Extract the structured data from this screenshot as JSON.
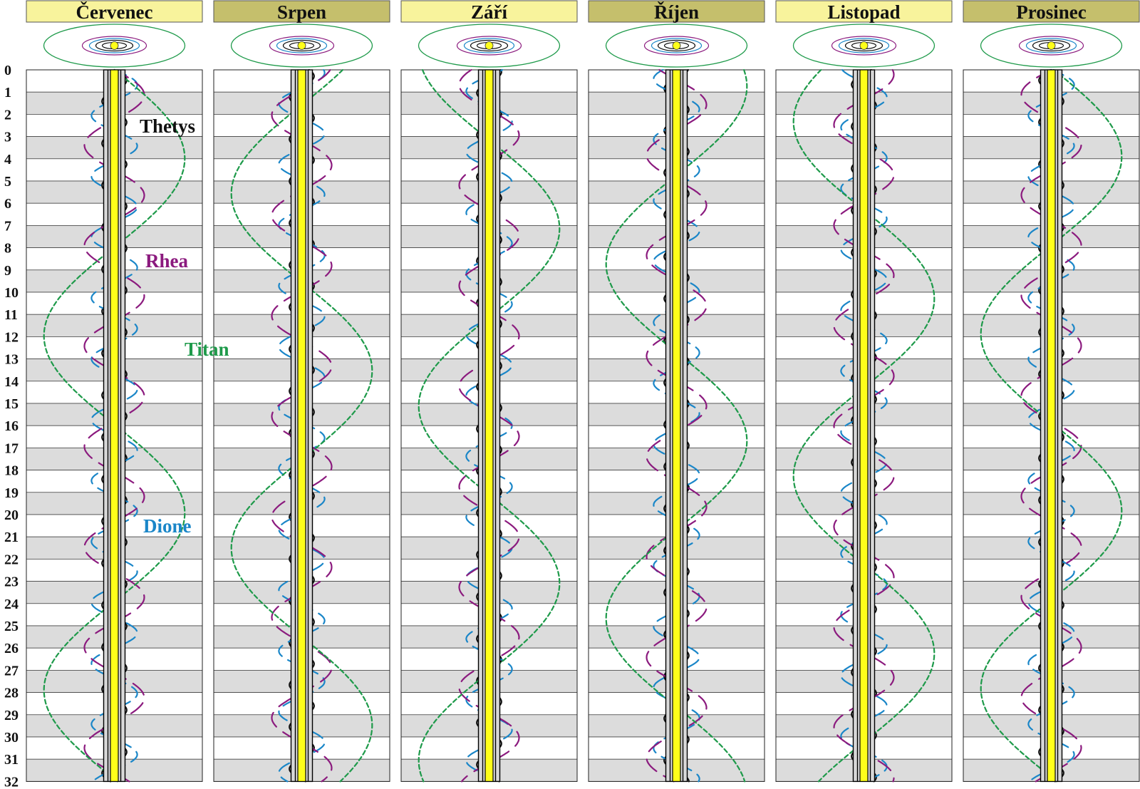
{
  "months": [
    {
      "name": "Červenec",
      "tint": "#f8f39c",
      "phase": 0.0
    },
    {
      "name": "Srpen",
      "tint": "#c5bf6c",
      "phase": 0.9
    },
    {
      "name": "Září",
      "tint": "#f8f39c",
      "phase": 1.8
    },
    {
      "name": "Říjen",
      "tint": "#c5bf6c",
      "phase": 2.7
    },
    {
      "name": "Listopad",
      "tint": "#f8f39c",
      "phase": 3.6
    },
    {
      "name": "Prosinec",
      "tint": "#c5bf6c",
      "phase": 4.5
    }
  ],
  "day_labels": [
    "0",
    "1",
    "2",
    "3",
    "4",
    "5",
    "6",
    "7",
    "8",
    "9",
    "10",
    "11",
    "12",
    "13",
    "14",
    "15",
    "16",
    "17",
    "18",
    "19",
    "20",
    "21",
    "22",
    "23",
    "24",
    "25",
    "26",
    "27",
    "28",
    "29",
    "30",
    "31",
    "32"
  ],
  "moons": [
    {
      "name": "Thetys",
      "color": "#111111",
      "period_days": 1.888,
      "amplitude": 0.07,
      "dash": "none"
    },
    {
      "name": "Dione",
      "color": "#1a86c8",
      "period_days": 2.737,
      "amplitude": 0.13,
      "dash": "18 10"
    },
    {
      "name": "Rhea",
      "color": "#8b1a7e",
      "period_days": 4.518,
      "amplitude": 0.17,
      "dash": "22 12"
    },
    {
      "name": "Titan",
      "color": "#1e9a4a",
      "period_days": 15.945,
      "amplitude": 0.4,
      "dash": "6 4"
    }
  ],
  "colors": {
    "planet_band": "#ffff1a",
    "ring": "#d8d8d8",
    "row_shade": "#dcdcdc",
    "header_border": "#555555",
    "orbit_frame": "#1e9a4a"
  }
}
